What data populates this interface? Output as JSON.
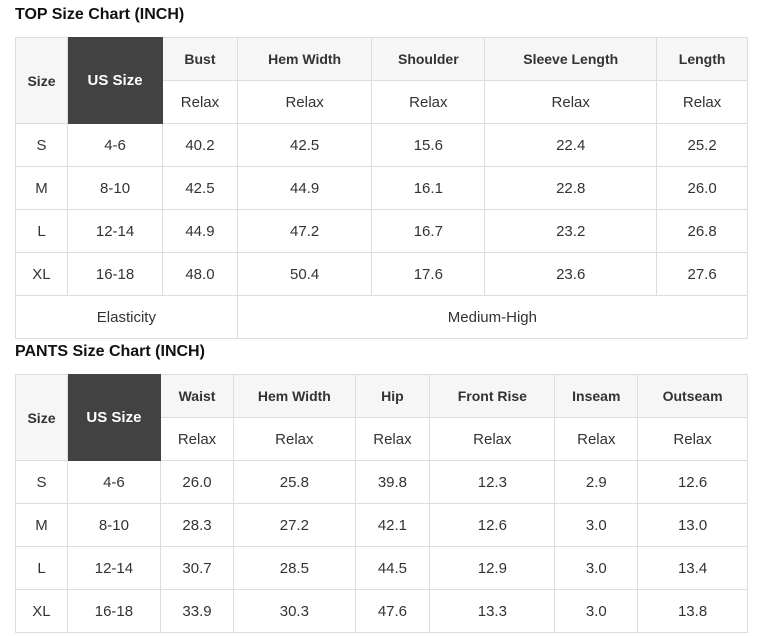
{
  "colors": {
    "header_bg": "#f6f6f6",
    "dark_cell_bg": "#424242",
    "dark_cell_text": "#ffffff",
    "border": "#dddddd",
    "text": "#333333",
    "title_text": "#111111"
  },
  "tables": [
    {
      "title": "TOP Size Chart (INCH)",
      "size_col_label": "Size",
      "us_size_col_label": "US Size",
      "measure_columns": [
        "Bust",
        "Hem Width",
        "Shoulder",
        "Sleeve Length",
        "Length"
      ],
      "fit_labels": [
        "Relax",
        "Relax",
        "Relax",
        "Relax",
        "Relax"
      ],
      "col_widths_pct": [
        7.1,
        13.0,
        10.2,
        18.4,
        15.4,
        23.5,
        12.4
      ],
      "rows": [
        {
          "size": "S",
          "us_size": "4-6",
          "values": [
            "40.2",
            "42.5",
            "15.6",
            "22.4",
            "25.2"
          ]
        },
        {
          "size": "M",
          "us_size": "8-10",
          "values": [
            "42.5",
            "44.9",
            "16.1",
            "22.8",
            "26.0"
          ]
        },
        {
          "size": "L",
          "us_size": "12-14",
          "values": [
            "44.9",
            "47.2",
            "16.7",
            "23.2",
            "26.8"
          ]
        },
        {
          "size": "XL",
          "us_size": "16-18",
          "values": [
            "48.0",
            "50.4",
            "17.6",
            "23.6",
            "27.6"
          ]
        }
      ],
      "footer": {
        "label": "Elasticity",
        "value": "Medium-High",
        "label_colspan": 3,
        "value_colspan": 4
      }
    },
    {
      "title": "PANTS Size Chart (INCH)",
      "size_col_label": "Size",
      "us_size_col_label": "US Size",
      "measure_columns": [
        "Waist",
        "Hem Width",
        "Hip",
        "Front Rise",
        "Inseam",
        "Outseam"
      ],
      "fit_labels": [
        "Relax",
        "Relax",
        "Relax",
        "Relax",
        "Relax",
        "Relax"
      ],
      "col_widths_pct": [
        7.1,
        12.7,
        10.0,
        16.6,
        10.2,
        17.1,
        11.3,
        15.0
      ],
      "rows": [
        {
          "size": "S",
          "us_size": "4-6",
          "values": [
            "26.0",
            "25.8",
            "39.8",
            "12.3",
            "2.9",
            "12.6"
          ]
        },
        {
          "size": "M",
          "us_size": "8-10",
          "values": [
            "28.3",
            "27.2",
            "42.1",
            "12.6",
            "3.0",
            "13.0"
          ]
        },
        {
          "size": "L",
          "us_size": "12-14",
          "values": [
            "30.7",
            "28.5",
            "44.5",
            "12.9",
            "3.0",
            "13.4"
          ]
        },
        {
          "size": "XL",
          "us_size": "16-18",
          "values": [
            "33.9",
            "30.3",
            "47.6",
            "13.3",
            "3.0",
            "13.8"
          ]
        }
      ],
      "footer": null
    }
  ]
}
